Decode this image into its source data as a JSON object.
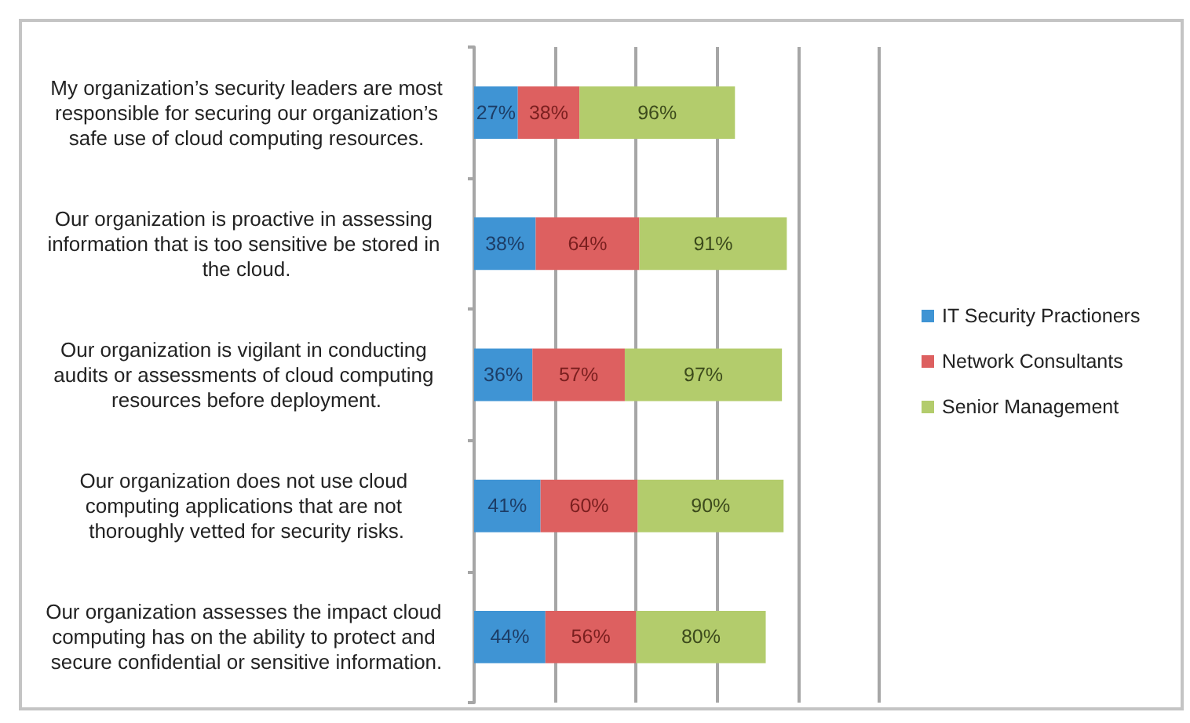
{
  "chart_data": {
    "type": "bar",
    "orientation": "horizontal",
    "stacked": true,
    "categories": [
      "My organization’s security leaders are most responsible for securing our organization’s safe use of cloud computing resources.",
      "Our organization is proactive in assessing information that is too sensitive be stored in the cloud.",
      "Our organization is vigilant in conducting audits or assessments of cloud computing resources before deployment.",
      "Our organization does not use cloud computing applications that are not thoroughly vetted for security risks.",
      "Our organization assesses the impact cloud computing has on the ability to protect and secure confidential or sensitive information."
    ],
    "series": [
      {
        "name": "IT Security Practioners",
        "color": "#3f94d4",
        "values": [
          27,
          38,
          36,
          41,
          44
        ],
        "value_labels": [
          "27%",
          "38%",
          "36%",
          "41%",
          "44%"
        ]
      },
      {
        "name": "Network Consultants",
        "color": "#dd6060",
        "values": [
          38,
          64,
          57,
          60,
          56
        ],
        "value_labels": [
          "38%",
          "64%",
          "57%",
          "60%",
          "56%"
        ]
      },
      {
        "name": "Senior Management",
        "color": "#b3cc6c",
        "values": [
          96,
          91,
          97,
          90,
          80
        ],
        "value_labels": [
          "96%",
          "91%",
          "97%",
          "90%",
          "80%"
        ]
      }
    ],
    "xlim": [
      0,
      250
    ],
    "xticks": [
      {
        "value": 0,
        "label": null
      },
      {
        "value": 50,
        "label": null
      },
      {
        "value": 100,
        "label": null
      },
      {
        "value": 150,
        "label": null
      },
      {
        "value": 200,
        "label": null
      },
      {
        "value": 250,
        "label": null
      }
    ],
    "grid": "x",
    "legend": "right",
    "tick_labels": "y"
  }
}
